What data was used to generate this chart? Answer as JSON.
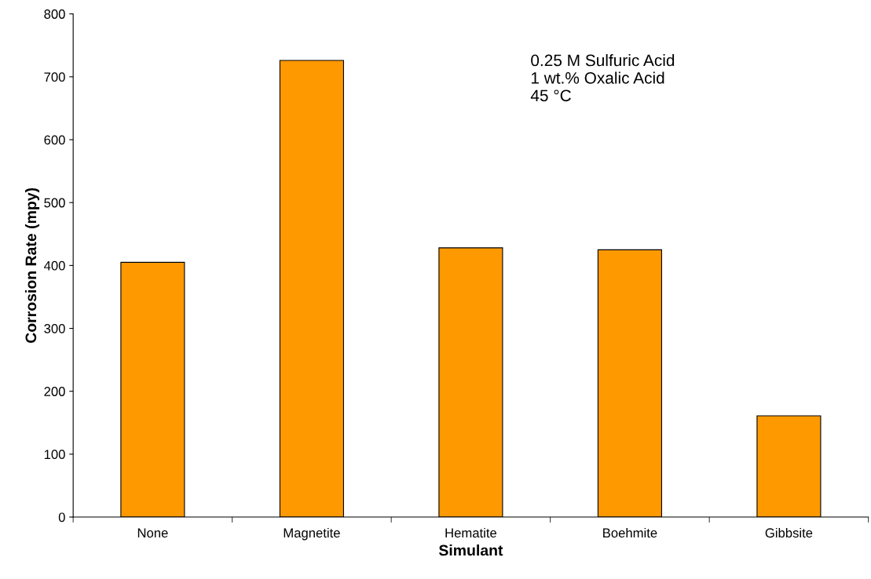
{
  "chart_data": {
    "type": "bar",
    "xlabel": "Simulant",
    "ylabel": "Corrosion Rate (mpy)",
    "categories": [
      "None",
      "Magnetite",
      "Hematite",
      "Boehmite",
      "Gibbsite"
    ],
    "values": [
      405,
      726,
      428,
      425,
      161
    ],
    "color": "#ff9900",
    "ylim": [
      0,
      800
    ],
    "yticks": [
      0,
      100,
      200,
      300,
      400,
      500,
      600,
      700,
      800
    ],
    "grid": false,
    "annotations": [
      "0.25 M Sulfuric Acid\n1 wt.% Oxalic Acid\n45 °C"
    ]
  }
}
